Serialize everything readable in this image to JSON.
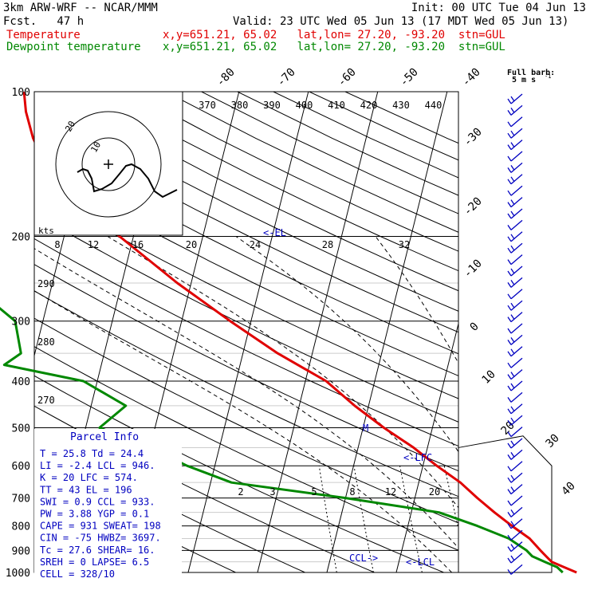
{
  "header": {
    "model": "3km ARW-WRF -- NCAR/MMM",
    "init": "Init: 00 UTC Tue 04 Jun 13",
    "fcst": "Fcst.   47 h",
    "valid": "Valid: 23 UTC Wed 05 Jun 13 (17 MDT Wed 05 Jun 13)",
    "temp_label": "Temperature",
    "dew_label": "Dewpoint temperature",
    "temp_loc": "x,y=651.21, 65.02   lat,lon= 27.20, -93.20  stn=GUL",
    "dew_loc": "x,y=651.21, 65.02   lat,lon= 27.20, -93.20  stn=GUL"
  },
  "barb_legend": {
    "line1": "Full barb:",
    "line2": "5 m s",
    "exponent": "-1"
  },
  "hodograph": {
    "units_label": "kts",
    "ring_labels": [
      "10",
      "20"
    ]
  },
  "markers": {
    "el": "<-EL",
    "lfc": "<-LFC",
    "ccl": "CCL->",
    "lcl": "<-LCL",
    "m": "M"
  },
  "parcel_info": {
    "title": "Parcel Info",
    "rows": [
      "T   =   25.8  Td =  24.4",
      "LI  =   -2.4  LCL =  946.",
      "K   =     20  LFC =  574.",
      "TT  =     43  EL  =  196",
      "SWI =    0.9  CCL =  933.",
      "PW  =   3.88  YGP =   0.1",
      "CAPE =   931  SWEAT=  198",
      "CIN  =   -75  HWBZ= 3697.",
      "Tc  =   27.6  SHEAR=  16.",
      "SREH =     0  LAPSE=  6.5",
      "CELL = 328/10"
    ]
  },
  "colors": {
    "temperature": "#e00000",
    "dewpoint": "#008800",
    "isobar": "#000000",
    "barb": "#0000c0",
    "guide": "#000000"
  },
  "chart_data": {
    "type": "line",
    "subtype": "skew-T log-p sounding",
    "y_axis": "pressure (hPa), log scale",
    "ylim": [
      1000,
      100
    ],
    "pressure_labels": [
      "100",
      "200",
      "300",
      "400",
      "500",
      "600",
      "700",
      "800",
      "900",
      "1000"
    ],
    "temperature_labels_diagonal": [
      "-80",
      "-70",
      "-60",
      "-50",
      "-40",
      "-30",
      "-20",
      "-10",
      "0",
      "10",
      "20",
      "30",
      "40"
    ],
    "theta_labels": [
      "370",
      "380",
      "390",
      "400",
      "410",
      "420",
      "430",
      "440"
    ],
    "speed_labels": [
      "8",
      "12",
      "16",
      "20",
      "24",
      "28",
      "32"
    ],
    "theta_left_labels": [
      "290",
      "280",
      "270"
    ],
    "mixing_ratio_labels": [
      "2",
      "3",
      "5",
      "8",
      "12",
      "20"
    ],
    "series": [
      {
        "name": "Temperature",
        "points": [
          [
            1000,
            26
          ],
          [
            975,
            24
          ],
          [
            950,
            22
          ],
          [
            925,
            21
          ],
          [
            900,
            20
          ],
          [
            850,
            18
          ],
          [
            800,
            15
          ],
          [
            750,
            12
          ],
          [
            700,
            9
          ],
          [
            650,
            6
          ],
          [
            600,
            2
          ],
          [
            550,
            -2
          ],
          [
            500,
            -7
          ],
          [
            450,
            -12
          ],
          [
            400,
            -17
          ],
          [
            350,
            -25
          ],
          [
            300,
            -33
          ],
          [
            250,
            -42
          ],
          [
            200,
            -52
          ],
          [
            175,
            -58
          ],
          [
            150,
            -64
          ],
          [
            125,
            -68
          ],
          [
            110,
            -70
          ],
          [
            100,
            -71
          ]
        ]
      },
      {
        "name": "Dewpoint temperature",
        "points": [
          [
            1000,
            24
          ],
          [
            975,
            23
          ],
          [
            950,
            21
          ],
          [
            925,
            19
          ],
          [
            900,
            18
          ],
          [
            850,
            15
          ],
          [
            800,
            10
          ],
          [
            750,
            4
          ],
          [
            700,
            -10
          ],
          [
            650,
            -27
          ],
          [
            600,
            -34
          ],
          [
            550,
            -40
          ],
          [
            500,
            -48
          ],
          [
            450,
            -45
          ],
          [
            400,
            -52
          ],
          [
            370,
            -64
          ],
          [
            350,
            -62
          ],
          [
            300,
            -64
          ],
          [
            250,
            -72
          ],
          [
            200,
            -82
          ],
          [
            150,
            -92
          ],
          [
            125,
            -94
          ],
          [
            110,
            -90
          ],
          [
            100,
            -86
          ]
        ]
      }
    ]
  }
}
